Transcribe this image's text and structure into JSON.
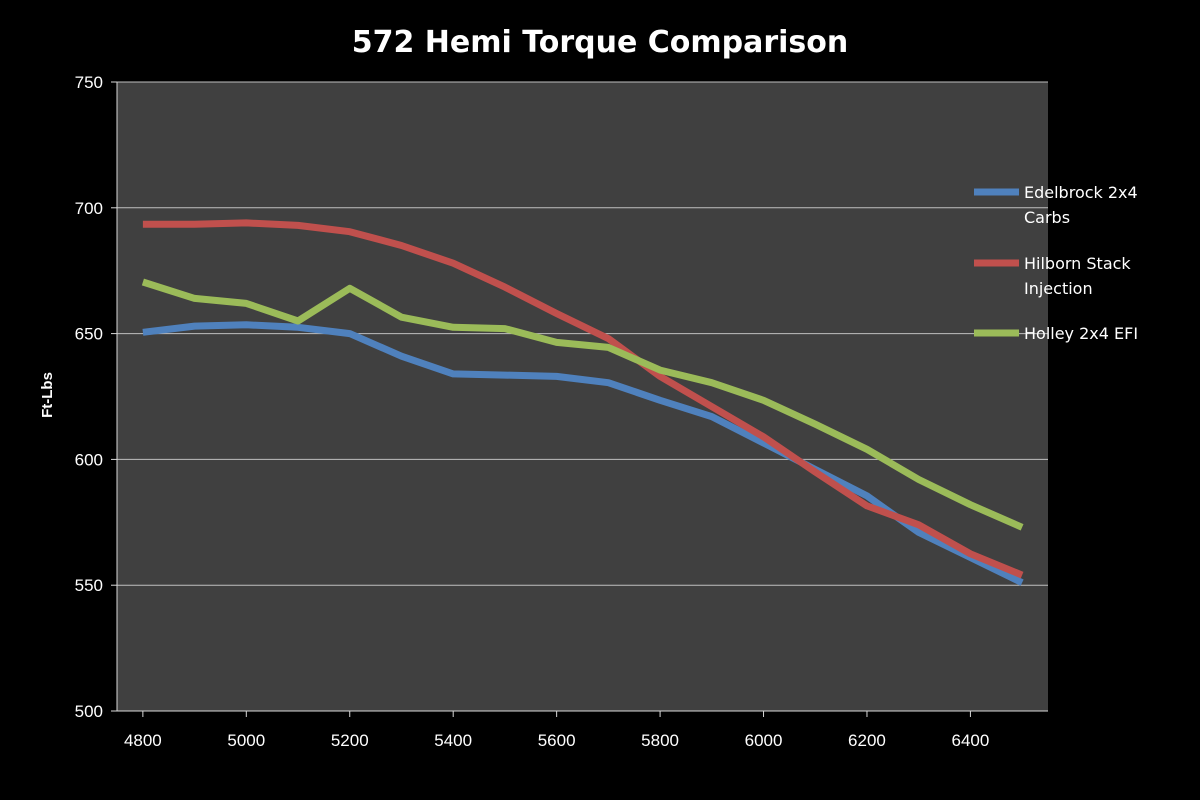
{
  "chart_data": {
    "type": "line",
    "title": "572 Hemi Torque Comparison",
    "xlabel": "",
    "ylabel": "Ft-Lbs",
    "x": [
      4800,
      4900,
      5000,
      5100,
      5200,
      5300,
      5400,
      5500,
      5600,
      5700,
      5800,
      5900,
      6000,
      6100,
      6200,
      6300,
      6400,
      6500
    ],
    "x_tick_labels": [
      "4800",
      "5000",
      "5200",
      "5400",
      "5600",
      "5800",
      "6000",
      "6200",
      "6400"
    ],
    "x_tick_values": [
      4800,
      5000,
      5200,
      5400,
      5600,
      5800,
      6000,
      6200,
      6400
    ],
    "xlim": [
      4750,
      6550
    ],
    "ylim": [
      500,
      750
    ],
    "y_ticks": [
      500,
      550,
      600,
      650,
      700,
      750
    ],
    "grid": true,
    "legend_position": "right",
    "series": [
      {
        "name": "Edelbrock 2x4 Carbs",
        "color": "#4f81bd",
        "values": [
          650.5,
          653,
          653.5,
          652.5,
          650,
          641,
          634,
          633.5,
          633,
          630.5,
          623.5,
          617,
          606.5,
          596,
          585.5,
          571,
          561,
          551
        ]
      },
      {
        "name": "Hilborn Stack Injection",
        "color": "#c0504d",
        "values": [
          693.5,
          693.5,
          694,
          693,
          690.5,
          685,
          678,
          668.5,
          658,
          648,
          633,
          621,
          609,
          595,
          581.5,
          574,
          562.5,
          554
        ]
      },
      {
        "name": "Holley 2x4 EFI",
        "color": "#9bbb59",
        "values": [
          670.5,
          664,
          662,
          655,
          668,
          656.5,
          652.5,
          652,
          646.5,
          644.5,
          635.5,
          630.5,
          623.5,
          614,
          604,
          592,
          582,
          573
        ]
      }
    ],
    "legend_labels": [
      [
        "Edelbrock 2x4",
        "Carbs"
      ],
      [
        "Hilborn Stack",
        "Injection"
      ],
      [
        "Holley 2x4 EFI"
      ]
    ],
    "plot_background": "#404040",
    "page_background": "#000000",
    "gridline_color": "#bfbfbf"
  }
}
